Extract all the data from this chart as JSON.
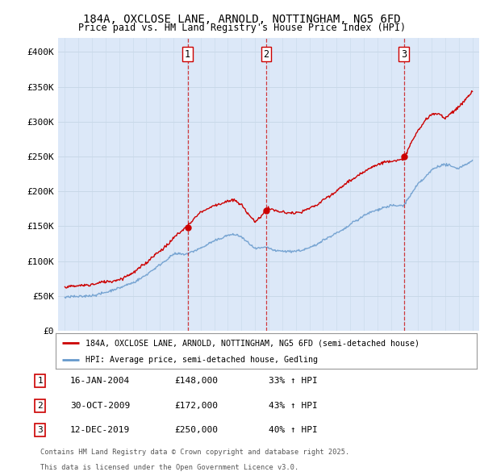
{
  "title_line1": "184A, OXCLOSE LANE, ARNOLD, NOTTINGHAM, NG5 6FD",
  "title_line2": "Price paid vs. HM Land Registry's House Price Index (HPI)",
  "legend_label_red": "184A, OXCLOSE LANE, ARNOLD, NOTTINGHAM, NG5 6FD (semi-detached house)",
  "legend_label_blue": "HPI: Average price, semi-detached house, Gedling",
  "footer_line1": "Contains HM Land Registry data © Crown copyright and database right 2025.",
  "footer_line2": "This data is licensed under the Open Government Licence v3.0.",
  "transactions": [
    {
      "num": 1,
      "date": "16-JAN-2004",
      "price": "£148,000",
      "hpi": "33% ↑ HPI",
      "x_year": 2004.04
    },
    {
      "num": 2,
      "date": "30-OCT-2009",
      "price": "£172,000",
      "hpi": "43% ↑ HPI",
      "x_year": 2009.83
    },
    {
      "num": 3,
      "date": "12-DEC-2019",
      "price": "£250,000",
      "hpi": "40% ↑ HPI",
      "x_year": 2019.95
    }
  ],
  "sale_prices": [
    148000,
    172000,
    250000
  ],
  "ylim": [
    0,
    420000
  ],
  "xlim": [
    1994.5,
    2025.5
  ],
  "yticks": [
    0,
    50000,
    100000,
    150000,
    200000,
    250000,
    300000,
    350000,
    400000
  ],
  "ytick_labels": [
    "£0",
    "£50K",
    "£100K",
    "£150K",
    "£200K",
    "£250K",
    "£300K",
    "£350K",
    "£400K"
  ],
  "bg_color": "#dce8f8",
  "fig_bg": "#ffffff",
  "red_color": "#cc0000",
  "blue_color": "#6699cc",
  "vline_color": "#cc0000",
  "grid_color": "#c8d8e8",
  "hpi_keypoints": [
    [
      1995.0,
      47000
    ],
    [
      1996.0,
      49000
    ],
    [
      1997.0,
      52000
    ],
    [
      1998.0,
      57000
    ],
    [
      1999.0,
      63000
    ],
    [
      2000.0,
      71000
    ],
    [
      2001.0,
      82000
    ],
    [
      2002.0,
      97000
    ],
    [
      2003.0,
      112000
    ],
    [
      2004.04,
      111000
    ],
    [
      2005.0,
      120000
    ],
    [
      2006.0,
      128000
    ],
    [
      2007.0,
      137000
    ],
    [
      2007.5,
      138000
    ],
    [
      2008.0,
      134000
    ],
    [
      2008.5,
      127000
    ],
    [
      2009.0,
      118000
    ],
    [
      2009.83,
      120000
    ],
    [
      2010.0,
      119000
    ],
    [
      2010.5,
      114000
    ],
    [
      2011.0,
      113000
    ],
    [
      2011.5,
      112000
    ],
    [
      2012.0,
      113000
    ],
    [
      2012.5,
      115000
    ],
    [
      2013.0,
      118000
    ],
    [
      2013.5,
      122000
    ],
    [
      2014.0,
      128000
    ],
    [
      2014.5,
      133000
    ],
    [
      2015.0,
      138000
    ],
    [
      2015.5,
      143000
    ],
    [
      2016.0,
      150000
    ],
    [
      2016.5,
      155000
    ],
    [
      2017.0,
      162000
    ],
    [
      2017.5,
      168000
    ],
    [
      2018.0,
      172000
    ],
    [
      2018.5,
      176000
    ],
    [
      2019.0,
      178000
    ],
    [
      2019.95,
      178000
    ],
    [
      2020.0,
      180000
    ],
    [
      2020.5,
      195000
    ],
    [
      2021.0,
      210000
    ],
    [
      2021.5,
      220000
    ],
    [
      2022.0,
      232000
    ],
    [
      2022.5,
      238000
    ],
    [
      2023.0,
      240000
    ],
    [
      2023.5,
      237000
    ],
    [
      2024.0,
      235000
    ],
    [
      2024.5,
      240000
    ],
    [
      2025.0,
      245000
    ]
  ],
  "red_keypoints": [
    [
      1995.0,
      58000
    ],
    [
      1996.0,
      60000
    ],
    [
      1997.0,
      63000
    ],
    [
      1998.0,
      67000
    ],
    [
      1999.0,
      70000
    ],
    [
      2000.0,
      78000
    ],
    [
      2001.0,
      92000
    ],
    [
      2002.0,
      110000
    ],
    [
      2003.0,
      130000
    ],
    [
      2004.04,
      148000
    ],
    [
      2005.0,
      168000
    ],
    [
      2006.0,
      178000
    ],
    [
      2007.0,
      183000
    ],
    [
      2007.5,
      185000
    ],
    [
      2008.0,
      178000
    ],
    [
      2008.5,
      165000
    ],
    [
      2009.0,
      153000
    ],
    [
      2009.83,
      172000
    ],
    [
      2010.0,
      173000
    ],
    [
      2010.5,
      170000
    ],
    [
      2011.0,
      168000
    ],
    [
      2011.5,
      167000
    ],
    [
      2012.0,
      168000
    ],
    [
      2012.5,
      170000
    ],
    [
      2013.0,
      175000
    ],
    [
      2013.5,
      180000
    ],
    [
      2014.0,
      188000
    ],
    [
      2014.5,
      195000
    ],
    [
      2015.0,
      202000
    ],
    [
      2015.5,
      210000
    ],
    [
      2016.0,
      218000
    ],
    [
      2016.5,
      225000
    ],
    [
      2017.0,
      232000
    ],
    [
      2017.5,
      238000
    ],
    [
      2018.0,
      243000
    ],
    [
      2018.5,
      247000
    ],
    [
      2019.0,
      249000
    ],
    [
      2019.95,
      250000
    ],
    [
      2020.0,
      255000
    ],
    [
      2020.5,
      275000
    ],
    [
      2021.0,
      295000
    ],
    [
      2021.5,
      308000
    ],
    [
      2022.0,
      318000
    ],
    [
      2022.5,
      320000
    ],
    [
      2023.0,
      315000
    ],
    [
      2023.5,
      322000
    ],
    [
      2024.0,
      328000
    ],
    [
      2024.5,
      338000
    ],
    [
      2025.0,
      348000
    ]
  ]
}
